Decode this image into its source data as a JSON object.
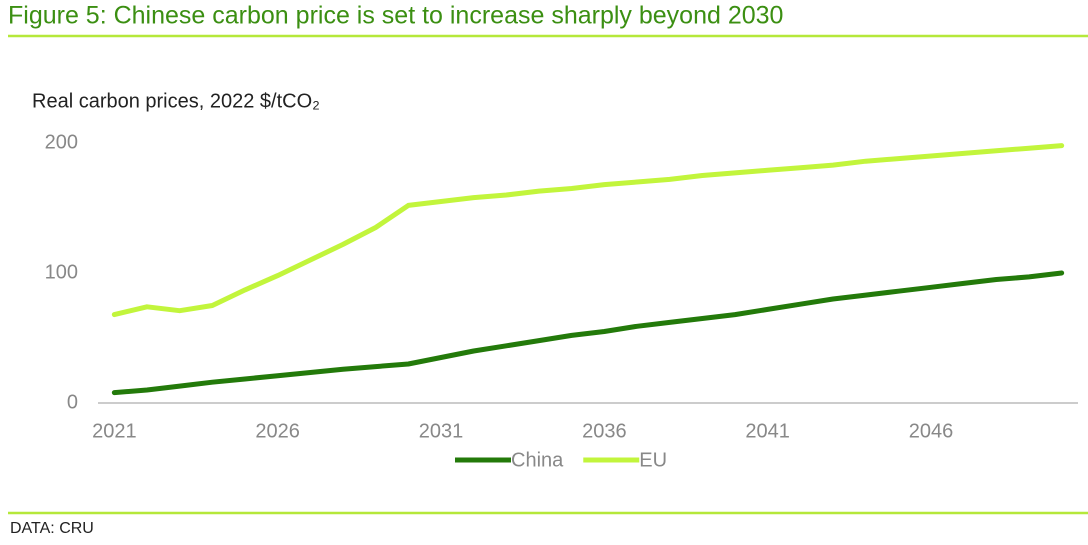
{
  "chart_data": {
    "type": "line",
    "title": "Figure 5: Chinese carbon price is set to increase sharply beyond 2030",
    "y_label": "Real carbon prices, 2022 $/tCO₂",
    "source": "DATA: CRU",
    "x": [
      2021,
      2022,
      2023,
      2024,
      2025,
      2026,
      2027,
      2028,
      2029,
      2030,
      2031,
      2032,
      2033,
      2034,
      2035,
      2036,
      2037,
      2038,
      2039,
      2040,
      2041,
      2042,
      2043,
      2044,
      2045,
      2046,
      2047,
      2048,
      2049,
      2050
    ],
    "series": [
      {
        "name": "China",
        "color": "#237a0a",
        "values": [
          8,
          10,
          13,
          16,
          18.5,
          21,
          23.5,
          26,
          28,
          30,
          35,
          40,
          44,
          48,
          52,
          55,
          59,
          62,
          65,
          68,
          72,
          76,
          80,
          83,
          86,
          89,
          92,
          95,
          97,
          100
        ]
      },
      {
        "name": "EU",
        "color": "#c2f53c",
        "values": [
          68,
          74,
          71,
          75,
          87,
          98,
          110,
          122,
          135,
          152,
          155,
          158,
          160,
          163,
          165,
          168,
          170,
          172,
          175,
          177,
          179,
          181,
          183,
          186,
          188,
          190,
          192,
          194,
          196,
          198
        ]
      }
    ],
    "xlim": [
      2020.5,
      2050.5
    ],
    "xticks": [
      2021,
      2026,
      2031,
      2036,
      2041,
      2046
    ],
    "ylim": [
      0,
      200
    ],
    "yticks": [
      0,
      100,
      200
    ],
    "grid": false,
    "legend": "bottom"
  }
}
